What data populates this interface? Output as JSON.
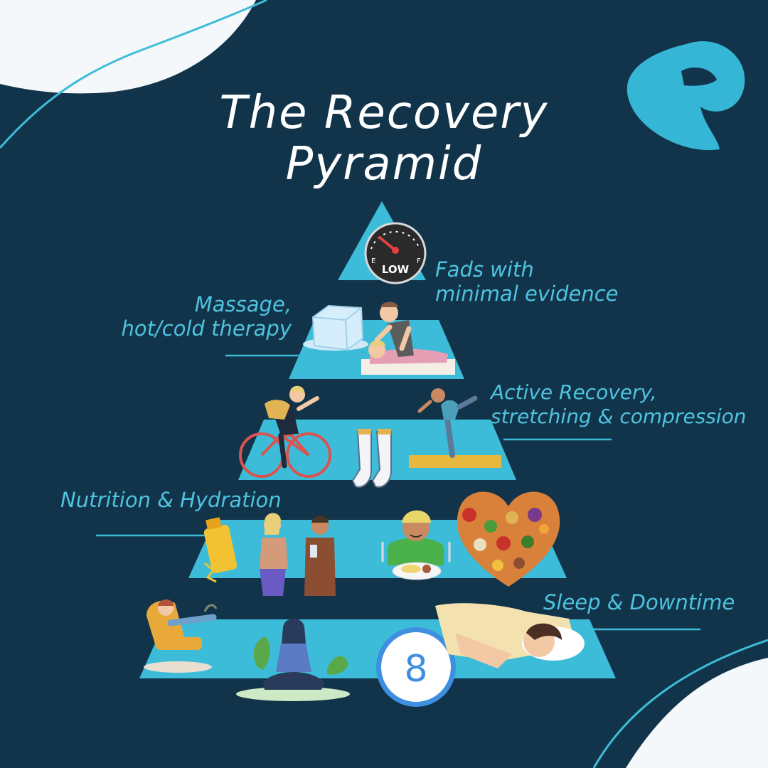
{
  "title": {
    "line1": "The Recovery",
    "line2": "Pyramid"
  },
  "colors": {
    "background": "#12344a",
    "tier": "#3dbcd9",
    "accent": "#4ec3df",
    "corner": "#f4f8fa",
    "logo": "#36b6d6"
  },
  "tiers": [
    {
      "label_lines": [
        "Fads with",
        "minimal evidence"
      ],
      "icons": [
        "fuel-gauge-icon"
      ]
    },
    {
      "label_lines": [
        "Massage,",
        "hot/cold therapy"
      ],
      "icons": [
        "ice-cube-icon",
        "massage-icon"
      ]
    },
    {
      "label_lines": [
        "Active Recovery,",
        "stretching & compression"
      ],
      "icons": [
        "cyclist-icon",
        "compression-socks-icon",
        "yoga-pose-icon"
      ]
    },
    {
      "label_lines": [
        "Nutrition & Hydration"
      ],
      "icons": [
        "water-bottle-icon",
        "drinking-people-icon",
        "eating-person-icon",
        "food-heart-icon"
      ]
    },
    {
      "label_lines": [
        "Sleep & Downtime"
      ],
      "icons": [
        "relaxing-chair-icon",
        "meditation-icon",
        "eight-hour-clock-icon",
        "sleeping-person-icon"
      ]
    }
  ],
  "gauge": {
    "text": "LOW",
    "empty_mark": "E",
    "full_mark": "F"
  },
  "sleep_clock": {
    "hours": "8"
  }
}
